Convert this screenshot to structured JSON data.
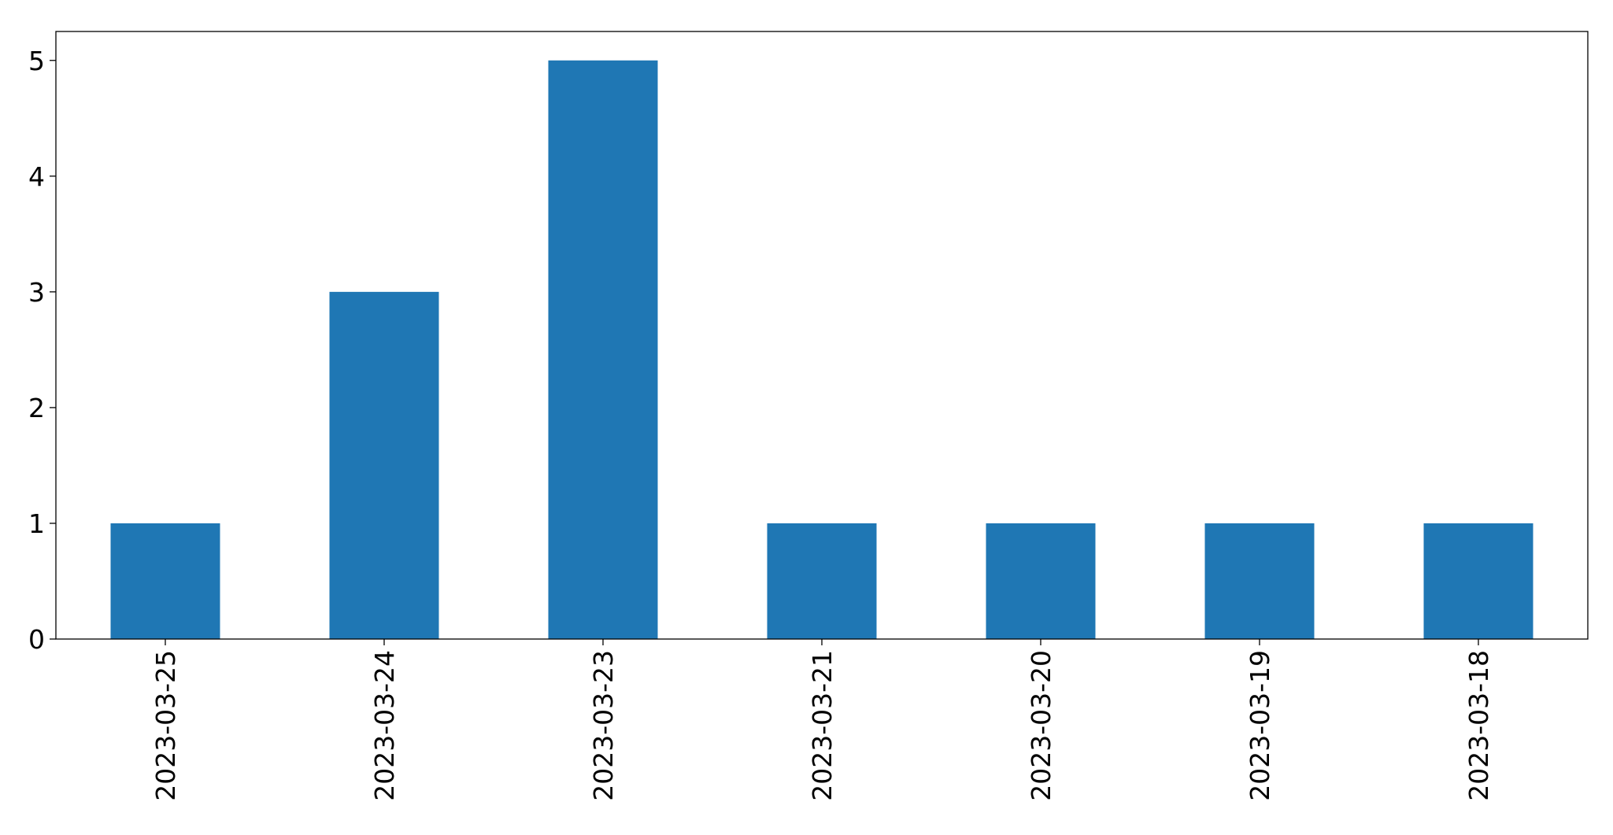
{
  "chart_data": {
    "type": "bar",
    "categories": [
      "2023-03-25",
      "2023-03-24",
      "2023-03-23",
      "2023-03-21",
      "2023-03-20",
      "2023-03-19",
      "2023-03-18"
    ],
    "values": [
      1,
      3,
      5,
      1,
      1,
      1,
      1
    ],
    "title": "",
    "xlabel": "",
    "ylabel": "",
    "ylim": [
      0,
      5.25
    ],
    "yticks": [
      "0",
      "1",
      "2",
      "3",
      "4",
      "5"
    ],
    "grid": false,
    "bar_color": "#1f77b4"
  }
}
